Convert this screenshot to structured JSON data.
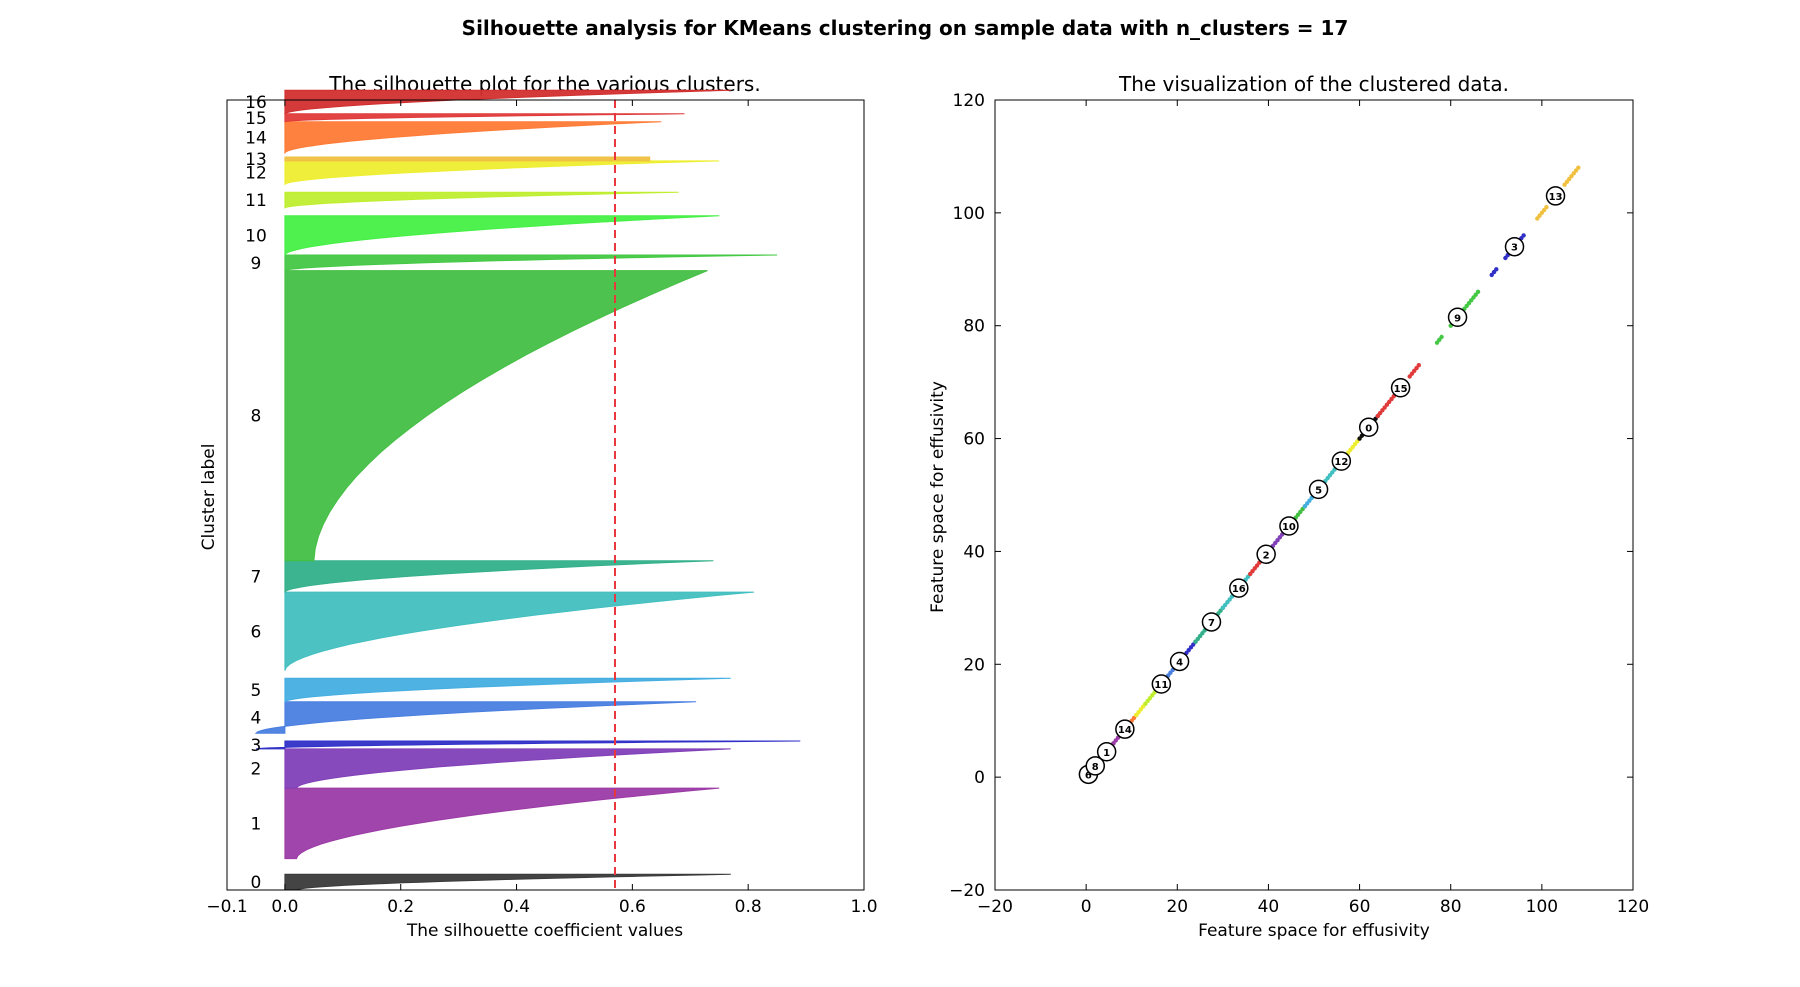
{
  "figure": {
    "suptitle": "Silhouette analysis for KMeans clustering on sample data with n_clusters = 17"
  },
  "chart_data": [
    {
      "type": "area",
      "title": "The silhouette plot for the various clusters.",
      "xlabel": "The silhouette coefficient values",
      "ylabel": "Cluster label",
      "xlim": [
        -0.1,
        1.0
      ],
      "xticks": [
        "−0.1",
        "0.0",
        "0.2",
        "0.4",
        "0.6",
        "0.8",
        "1.0"
      ],
      "average_silhouette": 0.57,
      "average_line_color": "#e8383d",
      "clusters": [
        {
          "label": "0",
          "color": "#3a3a3a",
          "max": 0.77,
          "min": 0.02,
          "low": 0.0,
          "high": 0.02
        },
        {
          "label": "1",
          "color": "#9b3ba6",
          "max": 0.75,
          "min": 0.02,
          "low": 0.04,
          "high": 0.13
        },
        {
          "label": "2",
          "color": "#8140b8",
          "max": 0.77,
          "min": 0.02,
          "low": 0.13,
          "high": 0.18
        },
        {
          "label": "3",
          "color": "#3030c8",
          "max": 0.89,
          "min": -0.05,
          "low": 0.18,
          "high": 0.19
        },
        {
          "label": "4",
          "color": "#4a7fe0",
          "max": 0.71,
          "min": -0.05,
          "low": 0.2,
          "high": 0.24
        },
        {
          "label": "5",
          "color": "#45aee0",
          "max": 0.77,
          "min": 0.0,
          "low": 0.24,
          "high": 0.27
        },
        {
          "label": "6",
          "color": "#42bfc0",
          "max": 0.81,
          "min": 0.0,
          "low": 0.28,
          "high": 0.38
        },
        {
          "label": "7",
          "color": "#33b08a",
          "max": 0.74,
          "min": 0.0,
          "low": 0.38,
          "high": 0.42
        },
        {
          "label": "8",
          "color": "#44bf44",
          "max": 0.73,
          "min": 0.05,
          "low": 0.42,
          "high": 0.79
        },
        {
          "label": "9",
          "color": "#44c844",
          "max": 0.85,
          "min": 0.0,
          "low": 0.79,
          "high": 0.81
        },
        {
          "label": "10",
          "color": "#44f044",
          "max": 0.75,
          "min": 0.0,
          "low": 0.81,
          "high": 0.86
        },
        {
          "label": "11",
          "color": "#bfee30",
          "max": 0.68,
          "min": 0.0,
          "low": 0.87,
          "high": 0.89
        },
        {
          "label": "12",
          "color": "#eeee30",
          "max": 0.75,
          "min": 0.0,
          "low": 0.9,
          "high": 0.93
        },
        {
          "label": "13",
          "color": "#f0c040",
          "max": 0.63,
          "min": 0.63,
          "low": 0.93,
          "high": 0.935
        },
        {
          "label": "14",
          "color": "#ff7a35",
          "max": 0.65,
          "min": 0.0,
          "low": 0.94,
          "high": 0.98
        },
        {
          "label": "15",
          "color": "#e03a3a",
          "max": 0.69,
          "min": 0.0,
          "low": 0.98,
          "high": 0.99
        },
        {
          "label": "16",
          "color": "#d22f2f",
          "max": 0.77,
          "min": 0.0,
          "low": 0.99,
          "high": 1.02
        }
      ]
    },
    {
      "type": "scatter",
      "title": "The visualization of the clustered data.",
      "xlabel": "Feature space for effusivity",
      "ylabel": "Feature space for effusivity",
      "xlim": [
        -20,
        120
      ],
      "ylim": [
        -20,
        120
      ],
      "xticks": [
        "−20",
        "0",
        "20",
        "40",
        "60",
        "80",
        "100",
        "120"
      ],
      "yticks": [
        "−20",
        "0",
        "20",
        "40",
        "60",
        "80",
        "100",
        "120"
      ],
      "segments": [
        {
          "x0": 0,
          "x1": 3,
          "color": "#3a3a3a"
        },
        {
          "x0": 3,
          "x1": 6,
          "color": "#8140b8"
        },
        {
          "x0": 6,
          "x1": 8,
          "color": "#9b3ba6"
        },
        {
          "x0": 8,
          "x1": 11,
          "color": "#ff7a35"
        },
        {
          "x0": 11,
          "x1": 13,
          "color": "#eeee30"
        },
        {
          "x0": 13,
          "x1": 18,
          "color": "#bfee30"
        },
        {
          "x0": 18,
          "x1": 20,
          "color": "#4a7fe0"
        },
        {
          "x0": 20,
          "x1": 24,
          "color": "#3030c8"
        },
        {
          "x0": 24,
          "x1": 30,
          "color": "#33b08a"
        },
        {
          "x0": 30,
          "x1": 36,
          "color": "#42bfc0"
        },
        {
          "x0": 36,
          "x1": 40,
          "color": "#e03a3a"
        },
        {
          "x0": 40,
          "x1": 44,
          "color": "#8140b8"
        },
        {
          "x0": 44,
          "x1": 48,
          "color": "#44bf44"
        },
        {
          "x0": 48,
          "x1": 52,
          "color": "#45aee0"
        },
        {
          "x0": 52,
          "x1": 56,
          "color": "#42bfc0"
        },
        {
          "x0": 56,
          "x1": 60,
          "color": "#eeee30"
        },
        {
          "x0": 60,
          "x1": 64,
          "color": "#111111"
        },
        {
          "x0": 64,
          "x1": 68,
          "color": "#e03a3a"
        },
        {
          "x0": 71,
          "x1": 73,
          "color": "#e03a3a"
        },
        {
          "x0": 77,
          "x1": 78,
          "color": "#44c844"
        },
        {
          "x0": 80,
          "x1": 86,
          "color": "#44c844"
        },
        {
          "x0": 89,
          "x1": 90,
          "color": "#3030c8"
        },
        {
          "x0": 92,
          "x1": 96,
          "color": "#3030c8"
        },
        {
          "x0": 99,
          "x1": 101,
          "color": "#f0c040"
        },
        {
          "x0": 105,
          "x1": 108,
          "color": "#f0c040"
        }
      ],
      "centers": [
        {
          "label": "6",
          "x": 0.5,
          "y": 0.5
        },
        {
          "label": "8",
          "x": 2,
          "y": 2
        },
        {
          "label": "1",
          "x": 4.5,
          "y": 4.5
        },
        {
          "label": "14",
          "x": 8.5,
          "y": 8.5
        },
        {
          "label": "11",
          "x": 16.5,
          "y": 16.5
        },
        {
          "label": "4",
          "x": 20.5,
          "y": 20.5
        },
        {
          "label": "7",
          "x": 27.5,
          "y": 27.5
        },
        {
          "label": "16",
          "x": 33.5,
          "y": 33.5
        },
        {
          "label": "2",
          "x": 39.5,
          "y": 39.5
        },
        {
          "label": "10",
          "x": 44.5,
          "y": 44.5
        },
        {
          "label": "5",
          "x": 51,
          "y": 51
        },
        {
          "label": "12",
          "x": 56,
          "y": 56
        },
        {
          "label": "0",
          "x": 62,
          "y": 62
        },
        {
          "label": "15",
          "x": 69,
          "y": 69
        },
        {
          "label": "9",
          "x": 81.5,
          "y": 81.5
        },
        {
          "label": "3",
          "x": 94,
          "y": 94
        },
        {
          "label": "13",
          "x": 103,
          "y": 103
        }
      ]
    }
  ]
}
